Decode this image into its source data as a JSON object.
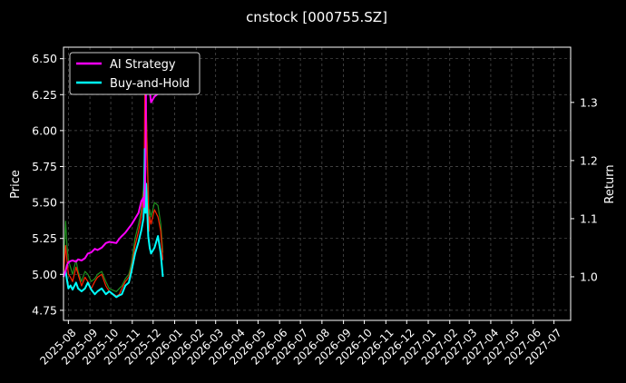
{
  "chart_data": {
    "type": "line",
    "title": "cnstock [000755.SZ]",
    "ylabel_left": "Price",
    "ylabel_right": "Return",
    "xlabel": "",
    "grid": true,
    "legend_position": "top-left",
    "x_ticks": [
      "2025-08",
      "2025-09",
      "2025-10",
      "2025-11",
      "2025-12",
      "2026-01",
      "2026-02",
      "2026-03",
      "2026-04",
      "2026-05",
      "2026-06",
      "2026-07",
      "2026-08",
      "2026-09",
      "2026-10",
      "2026-11",
      "2026-12",
      "2027-01",
      "2027-02",
      "2027-03",
      "2027-04",
      "2027-05",
      "2027-06",
      "2027-07"
    ],
    "x_range": [
      "2025-07-25",
      "2027-07-25"
    ],
    "y_left_ticks": [
      "4.75",
      "5.00",
      "5.25",
      "5.50",
      "5.75",
      "6.00",
      "6.25",
      "6.50"
    ],
    "y_left_range": [
      4.68,
      6.58
    ],
    "y_right_ticks": [
      "1.0",
      "1.1",
      "1.2",
      "1.3"
    ],
    "y_right_range": [
      0.925,
      1.395
    ],
    "series": [
      {
        "name": "AI Strategy",
        "axis": "right",
        "color": "#ff00ff",
        "x": [
          "2025-07-25",
          "2025-07-28",
          "2025-07-30",
          "2025-08-01",
          "2025-08-04",
          "2025-08-07",
          "2025-08-12",
          "2025-08-15",
          "2025-08-20",
          "2025-08-25",
          "2025-08-29",
          "2025-09-03",
          "2025-09-08",
          "2025-09-12",
          "2025-09-18",
          "2025-09-24",
          "2025-09-29",
          "2025-10-09",
          "2025-10-13",
          "2025-10-17",
          "2025-10-22",
          "2025-10-27",
          "2025-10-31",
          "2025-11-05",
          "2025-11-10",
          "2025-11-14",
          "2025-11-17",
          "2025-11-18",
          "2025-11-19",
          "2025-11-20",
          "2025-11-21",
          "2025-11-24",
          "2025-11-25",
          "2025-11-26",
          "2025-11-28",
          "2025-12-03",
          "2025-12-08",
          "2025-12-12",
          "2025-12-15"
        ],
        "values": [
          1.0,
          1.01,
          1.02,
          1.025,
          1.027,
          1.028,
          1.026,
          1.03,
          1.028,
          1.032,
          1.04,
          1.042,
          1.048,
          1.046,
          1.05,
          1.058,
          1.06,
          1.058,
          1.065,
          1.07,
          1.076,
          1.084,
          1.09,
          1.1,
          1.11,
          1.13,
          1.136,
          1.12,
          1.15,
          1.19,
          1.37,
          1.33,
          1.36,
          1.32,
          1.3,
          1.31,
          1.315,
          1.33,
          1.34
        ]
      },
      {
        "name": "Buy-and-Hold",
        "axis": "right",
        "color": "#00ffff",
        "x": [
          "2025-07-25",
          "2025-07-28",
          "2025-07-30",
          "2025-08-01",
          "2025-08-04",
          "2025-08-07",
          "2025-08-12",
          "2025-08-15",
          "2025-08-20",
          "2025-08-25",
          "2025-08-29",
          "2025-09-03",
          "2025-09-08",
          "2025-09-12",
          "2025-09-18",
          "2025-09-24",
          "2025-09-29",
          "2025-10-09",
          "2025-10-13",
          "2025-10-17",
          "2025-10-22",
          "2025-10-27",
          "2025-10-31",
          "2025-11-05",
          "2025-11-10",
          "2025-11-14",
          "2025-11-17",
          "2025-11-18",
          "2025-11-19",
          "2025-11-20",
          "2025-11-21",
          "2025-11-24",
          "2025-11-25",
          "2025-11-26",
          "2025-11-28",
          "2025-12-03",
          "2025-12-08",
          "2025-12-12",
          "2025-12-15"
        ],
        "values": [
          1.0,
          1.01,
          0.995,
          0.98,
          0.985,
          0.978,
          0.99,
          0.98,
          0.975,
          0.98,
          0.99,
          0.978,
          0.97,
          0.975,
          0.98,
          0.97,
          0.975,
          0.965,
          0.968,
          0.97,
          0.985,
          0.99,
          1.01,
          1.04,
          1.06,
          1.08,
          1.1,
          1.12,
          1.22,
          1.11,
          1.16,
          1.07,
          1.06,
          1.05,
          1.04,
          1.05,
          1.07,
          1.04,
          1.0
        ]
      },
      {
        "name": "",
        "axis": "left",
        "color": "#ff2200",
        "x": [
          "2025-07-25",
          "2025-07-28",
          "2025-07-30",
          "2025-08-01",
          "2025-08-04",
          "2025-08-07",
          "2025-08-12",
          "2025-08-15",
          "2025-08-20",
          "2025-08-25",
          "2025-08-29",
          "2025-09-03",
          "2025-09-08",
          "2025-09-12",
          "2025-09-18",
          "2025-09-24",
          "2025-09-29",
          "2025-10-09",
          "2025-10-13",
          "2025-10-17",
          "2025-10-22",
          "2025-10-27",
          "2025-10-31",
          "2025-11-05",
          "2025-11-10",
          "2025-11-14",
          "2025-11-17",
          "2025-11-18",
          "2025-11-19",
          "2025-11-20",
          "2025-11-21",
          "2025-11-24",
          "2025-11-25",
          "2025-11-26",
          "2025-11-28",
          "2025-12-03",
          "2025-12-08",
          "2025-12-12",
          "2025-12-15"
        ],
        "values": [
          5.0,
          5.2,
          5.1,
          5.0,
          4.98,
          4.95,
          5.05,
          5.0,
          4.92,
          4.98,
          4.95,
          4.9,
          4.95,
          4.98,
          5.0,
          4.92,
          4.88,
          4.85,
          4.86,
          4.9,
          4.95,
          4.98,
          5.05,
          5.2,
          5.3,
          5.4,
          5.55,
          5.6,
          6.25,
          6.1,
          6.2,
          5.5,
          5.3,
          5.4,
          5.35,
          5.45,
          5.4,
          5.3,
          5.1
        ]
      },
      {
        "name": "",
        "axis": "left",
        "color": "#1f8f1f",
        "x": [
          "2025-07-25",
          "2025-07-28",
          "2025-07-30",
          "2025-08-01",
          "2025-08-04",
          "2025-08-07",
          "2025-08-12",
          "2025-08-15",
          "2025-08-20",
          "2025-08-25",
          "2025-08-29",
          "2025-09-03",
          "2025-09-08",
          "2025-09-12",
          "2025-09-18",
          "2025-09-24",
          "2025-09-29",
          "2025-10-09",
          "2025-10-13",
          "2025-10-17",
          "2025-10-22",
          "2025-10-27",
          "2025-10-31",
          "2025-11-05",
          "2025-11-10",
          "2025-11-14",
          "2025-11-17",
          "2025-11-18",
          "2025-11-19",
          "2025-11-20",
          "2025-11-21",
          "2025-11-24",
          "2025-11-25",
          "2025-11-26",
          "2025-11-28",
          "2025-12-03",
          "2025-12-08",
          "2025-12-12",
          "2025-12-15"
        ],
        "values": [
          5.05,
          5.37,
          5.2,
          5.1,
          5.05,
          5.0,
          5.1,
          5.02,
          4.95,
          5.02,
          5.0,
          4.95,
          4.97,
          5.0,
          5.02,
          4.95,
          4.9,
          4.88,
          4.9,
          4.92,
          4.97,
          5.0,
          5.08,
          5.25,
          5.35,
          5.45,
          5.6,
          5.7,
          5.9,
          6.0,
          6.15,
          5.6,
          5.4,
          5.45,
          5.4,
          5.5,
          5.48,
          5.35,
          5.15
        ]
      }
    ]
  }
}
